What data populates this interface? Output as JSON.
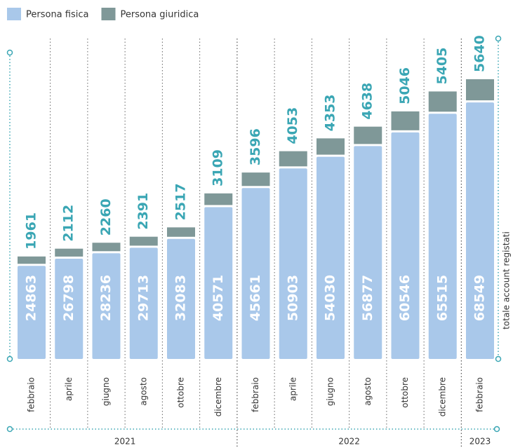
{
  "chart_data": {
    "type": "stacked_bar",
    "groups": [
      {
        "label": "2021",
        "categories": [
          "febbraio",
          "aprile",
          "giugno",
          "agosto",
          "ottobre",
          "dicembre"
        ]
      },
      {
        "label": "2022",
        "categories": [
          "febbraio",
          "aprile",
          "giugno",
          "agosto",
          "ottobre",
          "dicembre"
        ]
      },
      {
        "label": "2023",
        "categories": [
          "febbraio"
        ]
      }
    ],
    "series": [
      {
        "name": "Persona fisica",
        "color": "#a9c8ea",
        "values": [
          24863,
          26798,
          28236,
          29713,
          32083,
          40571,
          45661,
          50903,
          54030,
          56877,
          60546,
          65515,
          68549
        ]
      },
      {
        "name": "Persona giuridica",
        "color": "#7f9898",
        "values": [
          1961,
          2112,
          2260,
          2391,
          2517,
          3109,
          3596,
          4053,
          4353,
          4638,
          5046,
          5405,
          5640
        ]
      }
    ],
    "y_label": "totale account registati"
  }
}
